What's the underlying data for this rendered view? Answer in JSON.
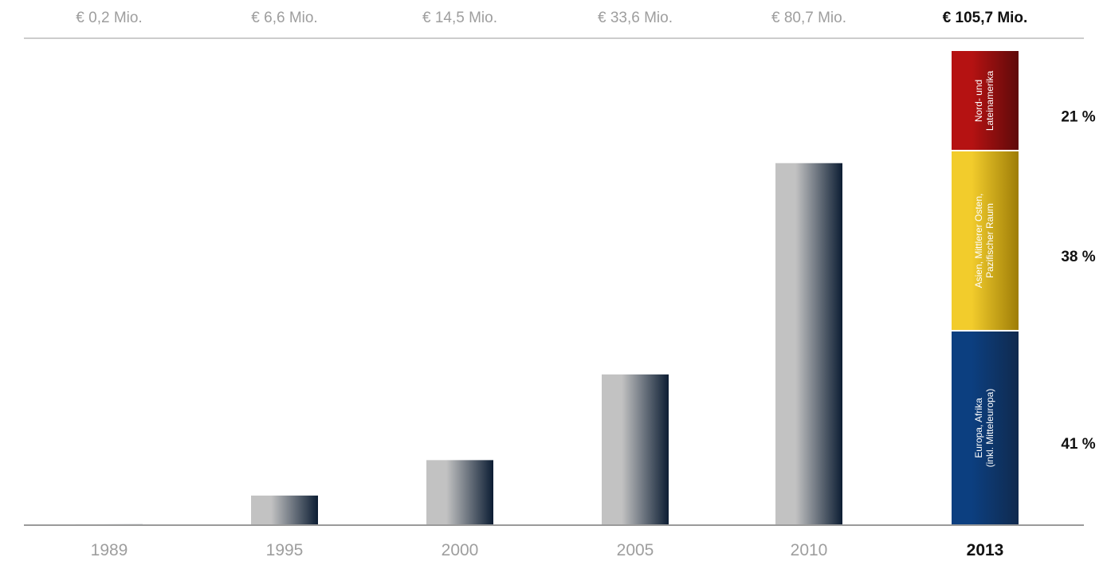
{
  "chart_data": {
    "type": "bar",
    "title": "",
    "xlabel": "",
    "ylabel": "",
    "ylim": [
      0,
      105.7
    ],
    "grid": false,
    "categories": [
      "1989",
      "1995",
      "2000",
      "2005",
      "2010",
      "2013"
    ],
    "values": [
      0.2,
      6.6,
      14.5,
      33.6,
      80.7,
      105.7
    ],
    "value_labels": [
      "€ 0,2 Mio.",
      "€ 6,6 Mio.",
      "€ 14,5 Mio.",
      "€ 33,6 Mio.",
      "€ 80,7 Mio.",
      "€ 105,7 Mio."
    ],
    "highlight_index": 5,
    "breakdown": {
      "category": "2013",
      "segments": [
        {
          "label_lines": [
            "Europa, Afrika",
            "(inkl. Mitteleuropa)"
          ],
          "percent": 41,
          "percent_label": "41 %",
          "color": "#0c3f80",
          "color_dark": "#102a4e"
        },
        {
          "label_lines": [
            "Asien, Mittlerer Osten,",
            "Pazifischer Raum"
          ],
          "percent": 38,
          "percent_label": "38 %",
          "color": "#f2cc2c",
          "color_dark": "#9e7d07"
        },
        {
          "label_lines": [
            "Nord- und",
            "Lateinamerika"
          ],
          "percent": 21,
          "percent_label": "21 %",
          "color": "#b51212",
          "color_dark": "#5e0a0a"
        }
      ]
    },
    "colors": {
      "bar_light": "#c2c2c2",
      "bar_dark": "#0c1d33",
      "label_muted": "#9e9e9e",
      "label_strong": "#111111",
      "rule": "#9a9a9a"
    }
  }
}
